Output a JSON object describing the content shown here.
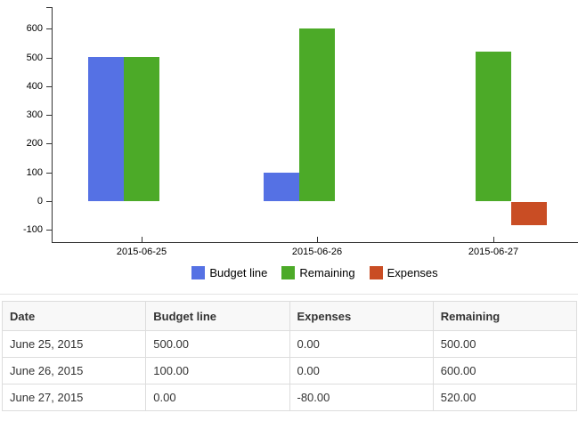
{
  "chart_data": {
    "type": "bar",
    "title": "",
    "categories": [
      "2015-06-25",
      "2015-06-26",
      "2015-06-27"
    ],
    "series": [
      {
        "name": "Budget line",
        "color": "#5571e4",
        "values": [
          500,
          100,
          0
        ]
      },
      {
        "name": "Remaining",
        "color": "#4caa28",
        "values": [
          500,
          600,
          520
        ]
      },
      {
        "name": "Expenses",
        "color": "#c94d24",
        "values": [
          0,
          0,
          -80
        ]
      }
    ],
    "y_ticks": [
      600,
      500,
      400,
      300,
      200,
      100,
      0,
      -100
    ],
    "ylim": [
      -145,
      675
    ],
    "xlabel": "",
    "ylabel": "",
    "grid": false,
    "legend_position": "bottom-center"
  },
  "table": {
    "headers": [
      "Date",
      "Budget line",
      "Expenses",
      "Remaining"
    ],
    "rows": [
      [
        "June 25, 2015",
        "500.00",
        "0.00",
        "500.00"
      ],
      [
        "June 26, 2015",
        "100.00",
        "0.00",
        "600.00"
      ],
      [
        "June 27, 2015",
        "0.00",
        "-80.00",
        "520.00"
      ]
    ]
  },
  "colors": {
    "budget_line": "#5571e4",
    "remaining": "#4caa28",
    "expenses": "#c94d24",
    "axis": "#333333",
    "table_border": "#dddddd",
    "table_header_bg": "#f8f8f8"
  }
}
